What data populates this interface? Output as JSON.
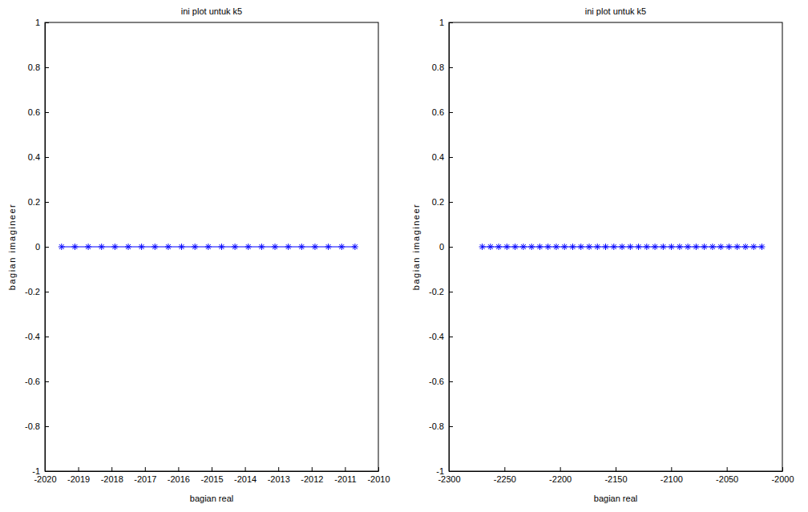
{
  "chart_data": [
    {
      "type": "scatter",
      "title": "ini plot untuk k5",
      "x_label": "bagian real",
      "y_label": "bagian imagineer",
      "color": "#0000ff",
      "marker": "asterisk",
      "line_style": "solid",
      "x": [
        -2019.5,
        -2019.1,
        -2018.7,
        -2018.3,
        -2017.9,
        -2017.5,
        -2017.1,
        -2016.7,
        -2016.3,
        -2015.9,
        -2015.5,
        -2015.1,
        -2014.7,
        -2014.3,
        -2013.9,
        -2013.5,
        -2013.1,
        -2012.7,
        -2012.3,
        -2011.9,
        -2011.5,
        -2011.1,
        -2010.7
      ],
      "values": [
        0,
        0,
        0,
        0,
        0,
        0,
        0,
        0,
        0,
        0,
        0,
        0,
        0,
        0,
        0,
        0,
        0,
        0,
        0,
        0,
        0,
        0,
        0
      ],
      "xlim": [
        -2020,
        -2010
      ],
      "xticks": [
        -2020,
        -2019,
        -2018,
        -2017,
        -2016,
        -2015,
        -2014,
        -2013,
        -2012,
        -2011,
        -2010
      ],
      "ylim": [
        -1,
        1
      ],
      "yticks": [
        -1,
        -0.8,
        -0.6,
        -0.4,
        -0.2,
        0,
        0.2,
        0.4,
        0.6,
        0.8,
        1
      ]
    },
    {
      "type": "scatter",
      "title": "ini plot untuk k5",
      "x_label": "bagian real",
      "y_label": "bagian imagineer",
      "color": "#0000ff",
      "marker": "asterisk",
      "line_style": "solid",
      "x": [
        -2270,
        -2262.6,
        -2255.2,
        -2247.8,
        -2240.4,
        -2233,
        -2225.6,
        -2218.2,
        -2210.8,
        -2203.4,
        -2196,
        -2188.6,
        -2181.2,
        -2173.8,
        -2166.4,
        -2159,
        -2151.6,
        -2144.2,
        -2136.8,
        -2129.4,
        -2122,
        -2114.6,
        -2107.2,
        -2099.8,
        -2092.4,
        -2085,
        -2077.6,
        -2070.2,
        -2062.8,
        -2055.4,
        -2048,
        -2040.6,
        -2033.2,
        -2025.8,
        -2018.4
      ],
      "values": [
        0,
        0,
        0,
        0,
        0,
        0,
        0,
        0,
        0,
        0,
        0,
        0,
        0,
        0,
        0,
        0,
        0,
        0,
        0,
        0,
        0,
        0,
        0,
        0,
        0,
        0,
        0,
        0,
        0,
        0,
        0,
        0,
        0,
        0,
        0
      ],
      "xlim": [
        -2300,
        -2000
      ],
      "xticks": [
        -2300,
        -2250,
        -2200,
        -2150,
        -2100,
        -2050,
        -2000
      ],
      "ylim": [
        -1,
        1
      ],
      "yticks": [
        -1,
        -0.8,
        -0.6,
        -0.4,
        -0.2,
        0,
        0.2,
        0.4,
        0.6,
        0.8,
        1
      ]
    }
  ]
}
